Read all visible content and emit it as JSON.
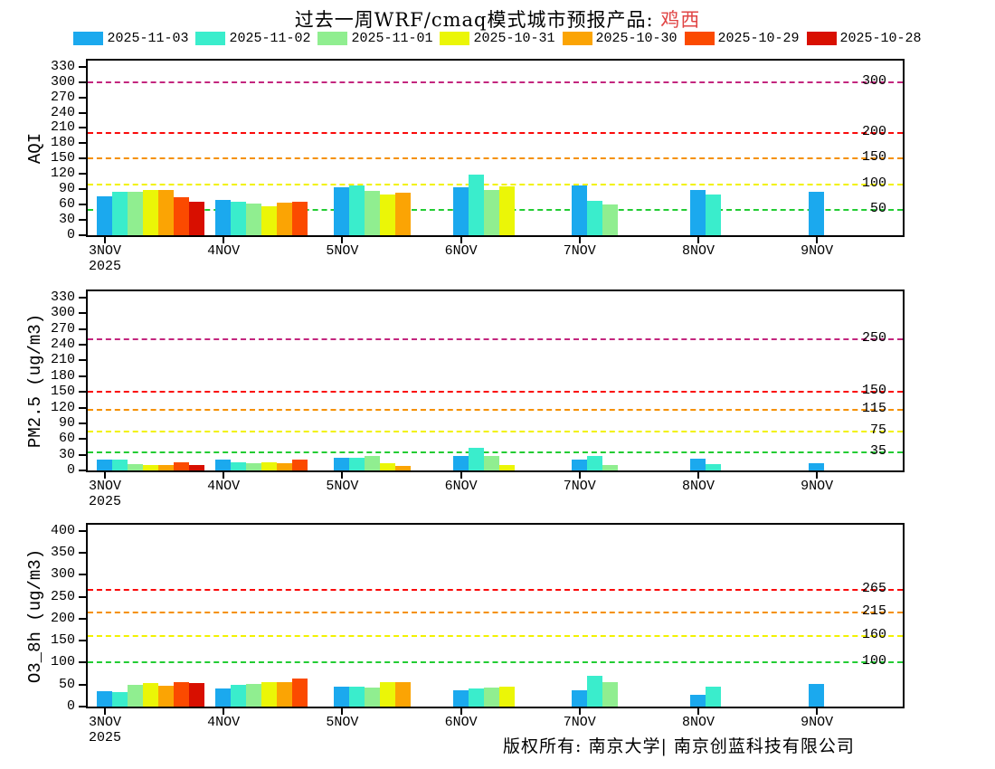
{
  "title": {
    "prefix": "过去一周WRF/cmaq模式城市预报产品: ",
    "city": "鸡西"
  },
  "legend": [
    {
      "label": "2025-11-03",
      "color": "#1ba9ee"
    },
    {
      "label": "2025-11-02",
      "color": "#3aedcc"
    },
    {
      "label": "2025-11-01",
      "color": "#90ee90"
    },
    {
      "label": "2025-10-31",
      "color": "#ebf607"
    },
    {
      "label": "2025-10-30",
      "color": "#fba404"
    },
    {
      "label": "2025-10-29",
      "color": "#fb4a00"
    },
    {
      "label": "2025-10-28",
      "color": "#d80f00"
    }
  ],
  "footer": "版权所有: 南京大学| 南京创蓝科技有限公司",
  "year_label": "2025",
  "chart_data": [
    {
      "type": "bar",
      "ylabel": "AQI",
      "ylim": [
        0,
        330
      ],
      "axis_max": 342,
      "ytick_step": 30,
      "grid": false,
      "legend_position": "top",
      "categories": [
        "3NOV",
        "4NOV",
        "5NOV",
        "6NOV",
        "7NOV",
        "8NOV",
        "9NOV"
      ],
      "series": [
        {
          "name": "2025-11-03",
          "values": [
            77,
            70,
            94,
            94,
            97,
            88,
            85
          ]
        },
        {
          "name": "2025-11-02",
          "values": [
            85,
            65,
            97,
            118,
            67,
            79,
            null
          ]
        },
        {
          "name": "2025-11-01",
          "values": [
            85,
            62,
            87,
            88,
            60,
            null,
            null
          ]
        },
        {
          "name": "2025-10-31",
          "values": [
            89,
            57,
            80,
            96,
            null,
            null,
            null
          ]
        },
        {
          "name": "2025-10-30",
          "values": [
            88,
            63,
            83,
            null,
            null,
            null,
            null
          ]
        },
        {
          "name": "2025-10-29",
          "values": [
            74,
            65,
            null,
            null,
            null,
            null,
            null
          ]
        },
        {
          "name": "2025-10-28",
          "values": [
            65,
            null,
            null,
            null,
            null,
            null,
            null
          ]
        }
      ],
      "ref_lines": [
        {
          "value": 300,
          "label": "300",
          "color": "#c3267e"
        },
        {
          "value": 200,
          "label": "200",
          "color": "#fa0a0a"
        },
        {
          "value": 150,
          "label": "150",
          "color": "#f59000"
        },
        {
          "value": 100,
          "label": "100",
          "color": "#f2f200"
        },
        {
          "value": 50,
          "label": "50",
          "color": "#22cc33"
        }
      ]
    },
    {
      "type": "bar",
      "ylabel": "PM2.5 (ug/m3)",
      "ylim": [
        0,
        330
      ],
      "axis_max": 342,
      "ytick_step": 30,
      "grid": false,
      "categories": [
        "3NOV",
        "4NOV",
        "5NOV",
        "6NOV",
        "7NOV",
        "8NOV",
        "9NOV"
      ],
      "series": [
        {
          "name": "2025-11-03",
          "values": [
            20,
            21,
            25,
            28,
            20,
            22,
            14
          ]
        },
        {
          "name": "2025-11-02",
          "values": [
            21,
            16,
            25,
            43,
            27,
            12,
            null
          ]
        },
        {
          "name": "2025-11-01",
          "values": [
            12,
            14,
            27,
            27,
            10,
            null,
            null
          ]
        },
        {
          "name": "2025-10-31",
          "values": [
            10,
            15,
            13,
            10,
            null,
            null,
            null
          ]
        },
        {
          "name": "2025-10-30",
          "values": [
            11,
            14,
            9,
            null,
            null,
            null,
            null
          ]
        },
        {
          "name": "2025-10-29",
          "values": [
            16,
            20,
            null,
            null,
            null,
            null,
            null
          ]
        },
        {
          "name": "2025-10-28",
          "values": [
            10,
            null,
            null,
            null,
            null,
            null,
            null
          ]
        }
      ],
      "ref_lines": [
        {
          "value": 250,
          "label": "250",
          "color": "#c3267e"
        },
        {
          "value": 150,
          "label": "150",
          "color": "#fa0a0a"
        },
        {
          "value": 115,
          "label": "115",
          "color": "#f59000"
        },
        {
          "value": 75,
          "label": "75",
          "color": "#f2f200"
        },
        {
          "value": 35,
          "label": "35",
          "color": "#22cc33"
        }
      ]
    },
    {
      "type": "bar",
      "ylabel": "O3_8h (ug/m3)",
      "ylim": [
        0,
        400
      ],
      "axis_max": 414,
      "ytick_step": 50,
      "grid": false,
      "categories": [
        "3NOV",
        "4NOV",
        "5NOV",
        "6NOV",
        "7NOV",
        "8NOV",
        "9NOV"
      ],
      "series": [
        {
          "name": "2025-11-03",
          "values": [
            36,
            41,
            45,
            37,
            37,
            27,
            52
          ]
        },
        {
          "name": "2025-11-02",
          "values": [
            34,
            49,
            46,
            41,
            70,
            45,
            null
          ]
        },
        {
          "name": "2025-11-01",
          "values": [
            49,
            52,
            43,
            43,
            55,
            null,
            null
          ]
        },
        {
          "name": "2025-10-31",
          "values": [
            53,
            56,
            55,
            46,
            null,
            null,
            null
          ]
        },
        {
          "name": "2025-10-30",
          "values": [
            47,
            55,
            55,
            null,
            null,
            null,
            null
          ]
        },
        {
          "name": "2025-10-29",
          "values": [
            56,
            64,
            null,
            null,
            null,
            null,
            null
          ]
        },
        {
          "name": "2025-10-28",
          "values": [
            53,
            null,
            null,
            null,
            null,
            null,
            null
          ]
        }
      ],
      "ref_lines": [
        {
          "value": 265,
          "label": "265",
          "color": "#fa0a0a"
        },
        {
          "value": 215,
          "label": "215",
          "color": "#f59000"
        },
        {
          "value": 160,
          "label": "160",
          "color": "#f2f200"
        },
        {
          "value": 100,
          "label": "100",
          "color": "#22cc33"
        }
      ]
    }
  ]
}
